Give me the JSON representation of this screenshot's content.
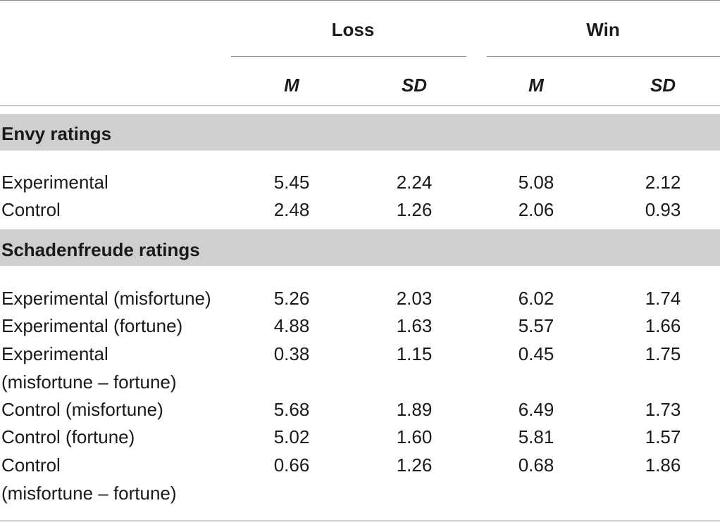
{
  "header": {
    "groups": [
      "Loss",
      "Win"
    ],
    "subcols": [
      "M",
      "SD",
      "M",
      "SD"
    ]
  },
  "sections": [
    {
      "title": "Envy ratings",
      "rows": [
        {
          "label": [
            "Experimental"
          ],
          "values": [
            "5.45",
            "2.24",
            "5.08",
            "2.12"
          ]
        },
        {
          "label": [
            "Control"
          ],
          "values": [
            "2.48",
            "1.26",
            "2.06",
            "0.93"
          ]
        }
      ]
    },
    {
      "title": "Schadenfreude ratings",
      "rows": [
        {
          "label": [
            "Experimental (misfortune)"
          ],
          "values": [
            "5.26",
            "2.03",
            "6.02",
            "1.74"
          ]
        },
        {
          "label": [
            "Experimental (fortune)"
          ],
          "values": [
            "4.88",
            "1.63",
            "5.57",
            "1.66"
          ]
        },
        {
          "label": [
            "Experimental",
            "(misfortune – fortune)"
          ],
          "values": [
            "0.38",
            "1.15",
            "0.45",
            "1.75"
          ]
        },
        {
          "label": [
            "Control (misfortune)"
          ],
          "values": [
            "5.68",
            "1.89",
            "6.49",
            "1.73"
          ]
        },
        {
          "label": [
            "Control (fortune)"
          ],
          "values": [
            "5.02",
            "1.60",
            "5.81",
            "1.57"
          ]
        },
        {
          "label": [
            "Control",
            "(misfortune – fortune)"
          ],
          "values": [
            "0.66",
            "1.26",
            "0.68",
            "1.86"
          ]
        }
      ]
    }
  ]
}
